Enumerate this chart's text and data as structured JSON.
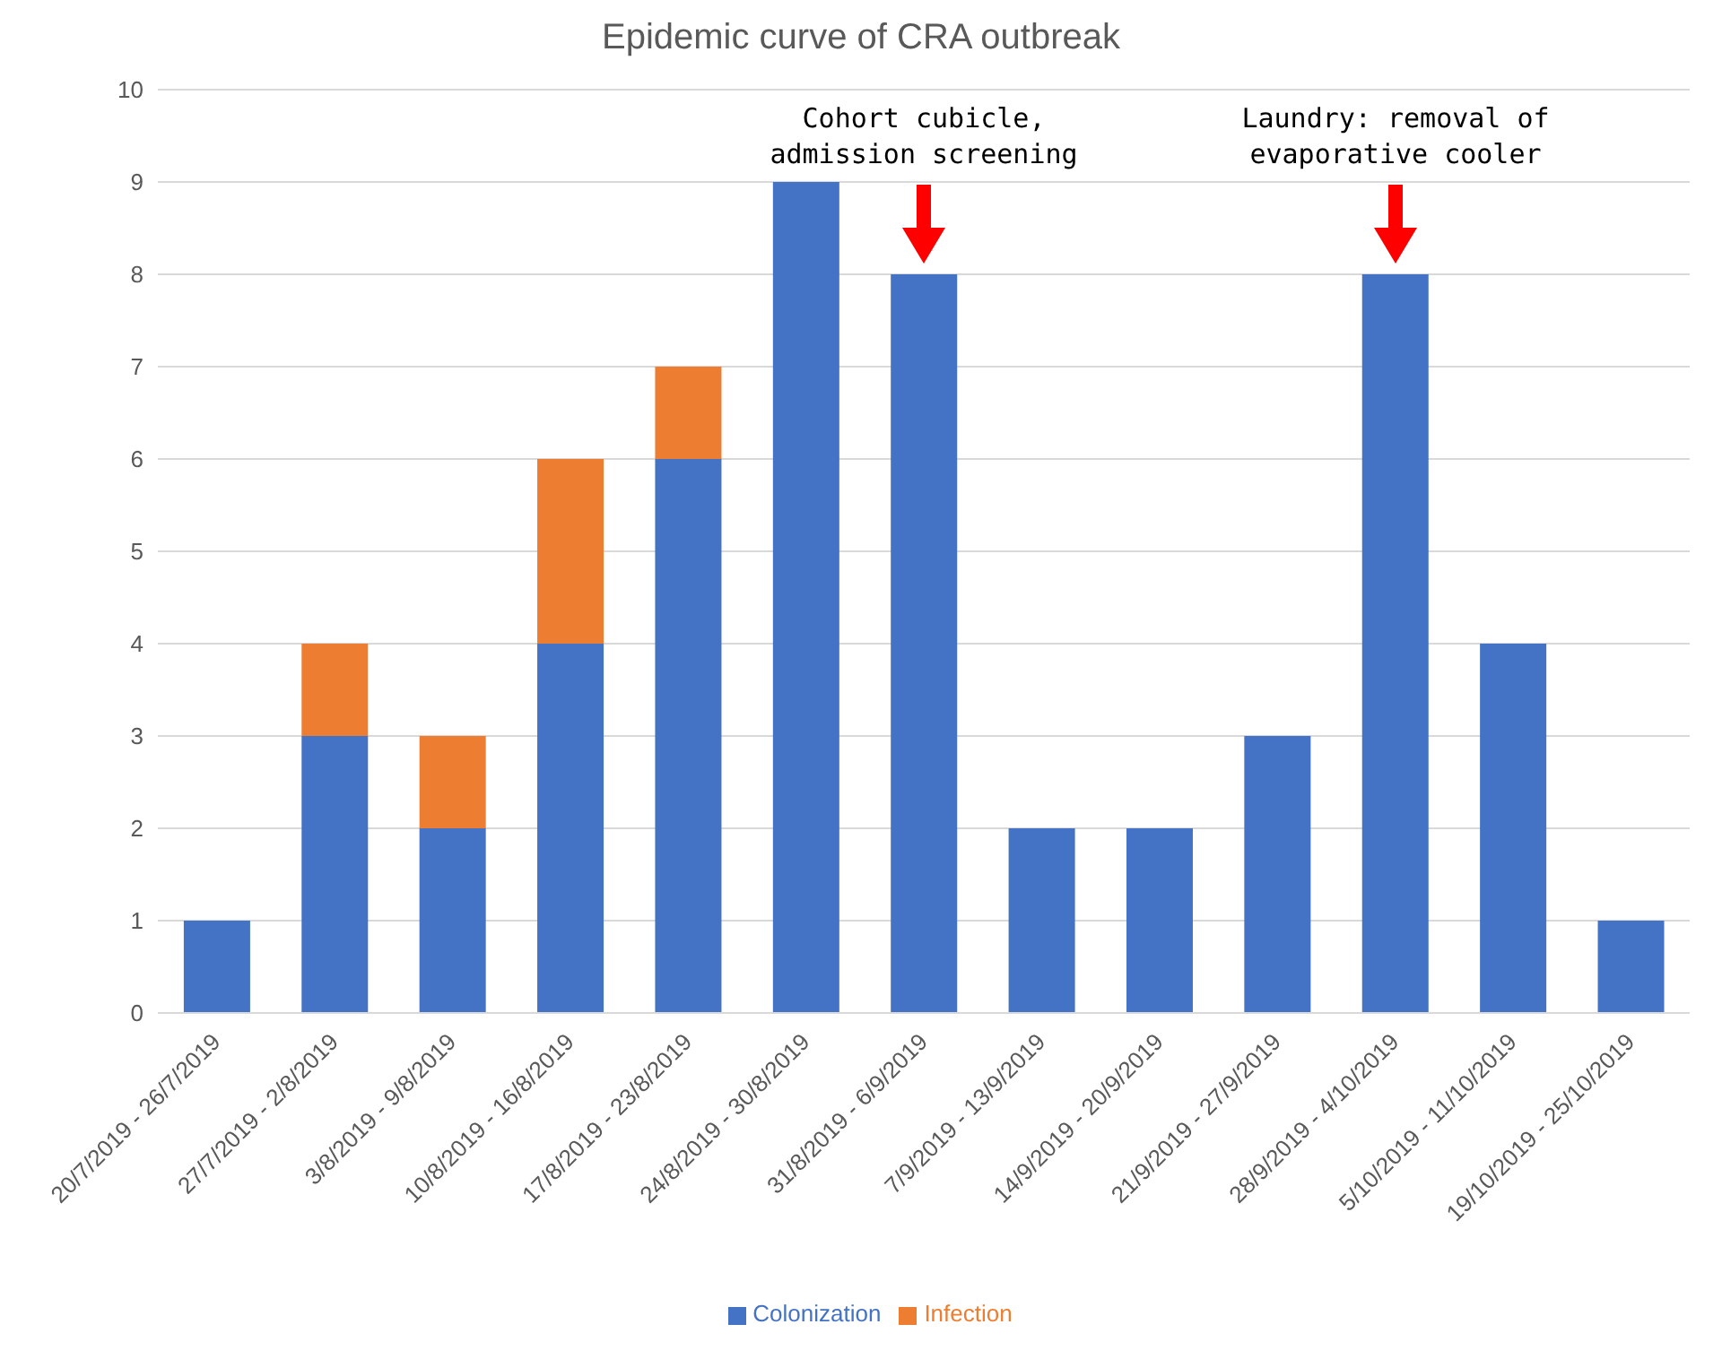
{
  "chart_data": {
    "type": "bar",
    "title": "Epidemic curve of CRA outbreak",
    "stacked": true,
    "categories": [
      "20/7/2019 - 26/7/2019",
      "27/7/2019 - 2/8/2019",
      "3/8/2019 - 9/8/2019",
      "10/8/2019 - 16/8/2019",
      "17/8/2019 - 23/8/2019",
      "24/8/2019 - 30/8/2019",
      "31/8/2019 - 6/9/2019",
      "7/9/2019 - 13/9/2019",
      "14/9/2019 - 20/9/2019",
      "21/9/2019 - 27/9/2019",
      "28/9/2019 - 4/10/2019",
      "5/10/2019 - 11/10/2019",
      "19/10/2019 - 25/10/2019"
    ],
    "series": [
      {
        "name": "Colonization",
        "color": "#4472c4",
        "values": [
          1,
          3,
          2,
          4,
          6,
          9,
          8,
          2,
          2,
          3,
          8,
          4,
          1
        ]
      },
      {
        "name": "Infection",
        "color": "#ed7d31",
        "values": [
          null,
          1,
          1,
          2,
          1,
          null,
          null,
          null,
          null,
          null,
          null,
          null,
          null
        ]
      }
    ],
    "ylim": [
      0,
      10
    ],
    "yticks": [
      0,
      1,
      2,
      3,
      4,
      5,
      6,
      7,
      8,
      9,
      10
    ],
    "grid": "y",
    "legend": "bottom",
    "annotations": [
      "Cohort cubicle,\nadmission screening",
      "Laundry: removal of\nevaporative cooler"
    ]
  }
}
